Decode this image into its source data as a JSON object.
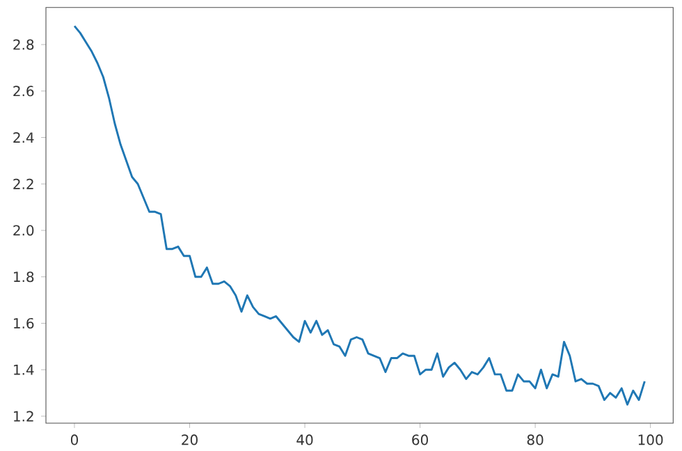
{
  "chart_data": {
    "type": "line",
    "color": "#1f77b4",
    "x": [
      0,
      1,
      2,
      3,
      4,
      5,
      6,
      7,
      8,
      9,
      10,
      11,
      12,
      13,
      14,
      15,
      16,
      17,
      18,
      19,
      20,
      21,
      22,
      23,
      24,
      25,
      26,
      27,
      28,
      29,
      30,
      31,
      32,
      33,
      34,
      35,
      36,
      37,
      38,
      39,
      40,
      41,
      42,
      43,
      44,
      45,
      46,
      47,
      48,
      49,
      50,
      51,
      52,
      53,
      54,
      55,
      56,
      57,
      58,
      59,
      60,
      61,
      62,
      63,
      64,
      65,
      66,
      67,
      68,
      69,
      70,
      71,
      72,
      73,
      74,
      75,
      76,
      77,
      78,
      79,
      80,
      81,
      82,
      83,
      84,
      85,
      86,
      87,
      88,
      89,
      90,
      91,
      92,
      93,
      94,
      95,
      96,
      97,
      98,
      99
    ],
    "values": [
      2.88,
      2.85,
      2.81,
      2.77,
      2.72,
      2.66,
      2.57,
      2.46,
      2.37,
      2.3,
      2.23,
      2.2,
      2.14,
      2.08,
      2.08,
      2.07,
      1.92,
      1.92,
      1.93,
      1.89,
      1.89,
      1.8,
      1.8,
      1.84,
      1.77,
      1.77,
      1.78,
      1.76,
      1.72,
      1.65,
      1.72,
      1.67,
      1.64,
      1.63,
      1.62,
      1.63,
      1.6,
      1.57,
      1.54,
      1.52,
      1.61,
      1.56,
      1.61,
      1.55,
      1.57,
      1.51,
      1.5,
      1.46,
      1.53,
      1.54,
      1.53,
      1.47,
      1.46,
      1.45,
      1.39,
      1.45,
      1.45,
      1.47,
      1.46,
      1.46,
      1.38,
      1.4,
      1.4,
      1.47,
      1.37,
      1.41,
      1.43,
      1.4,
      1.36,
      1.39,
      1.38,
      1.41,
      1.45,
      1.38,
      1.38,
      1.31,
      1.31,
      1.38,
      1.35,
      1.35,
      1.32,
      1.4,
      1.32,
      1.38,
      1.37,
      1.52,
      1.46,
      1.35,
      1.36,
      1.34,
      1.34,
      1.33,
      1.27,
      1.3,
      1.28,
      1.32,
      1.25,
      1.31,
      1.27,
      1.35
    ],
    "xlim": [
      -4.95,
      103.95
    ],
    "ylim": [
      1.17,
      2.96
    ],
    "xticks": [
      0,
      20,
      40,
      60,
      80,
      100
    ],
    "yticks": [
      1.2,
      1.4,
      1.6,
      1.8,
      {
        "value": 2.0,
        "label": "2.0"
      },
      2.2,
      2.4,
      2.6,
      2.8
    ],
    "line_style": "solid",
    "marker": "none",
    "grid": false
  }
}
